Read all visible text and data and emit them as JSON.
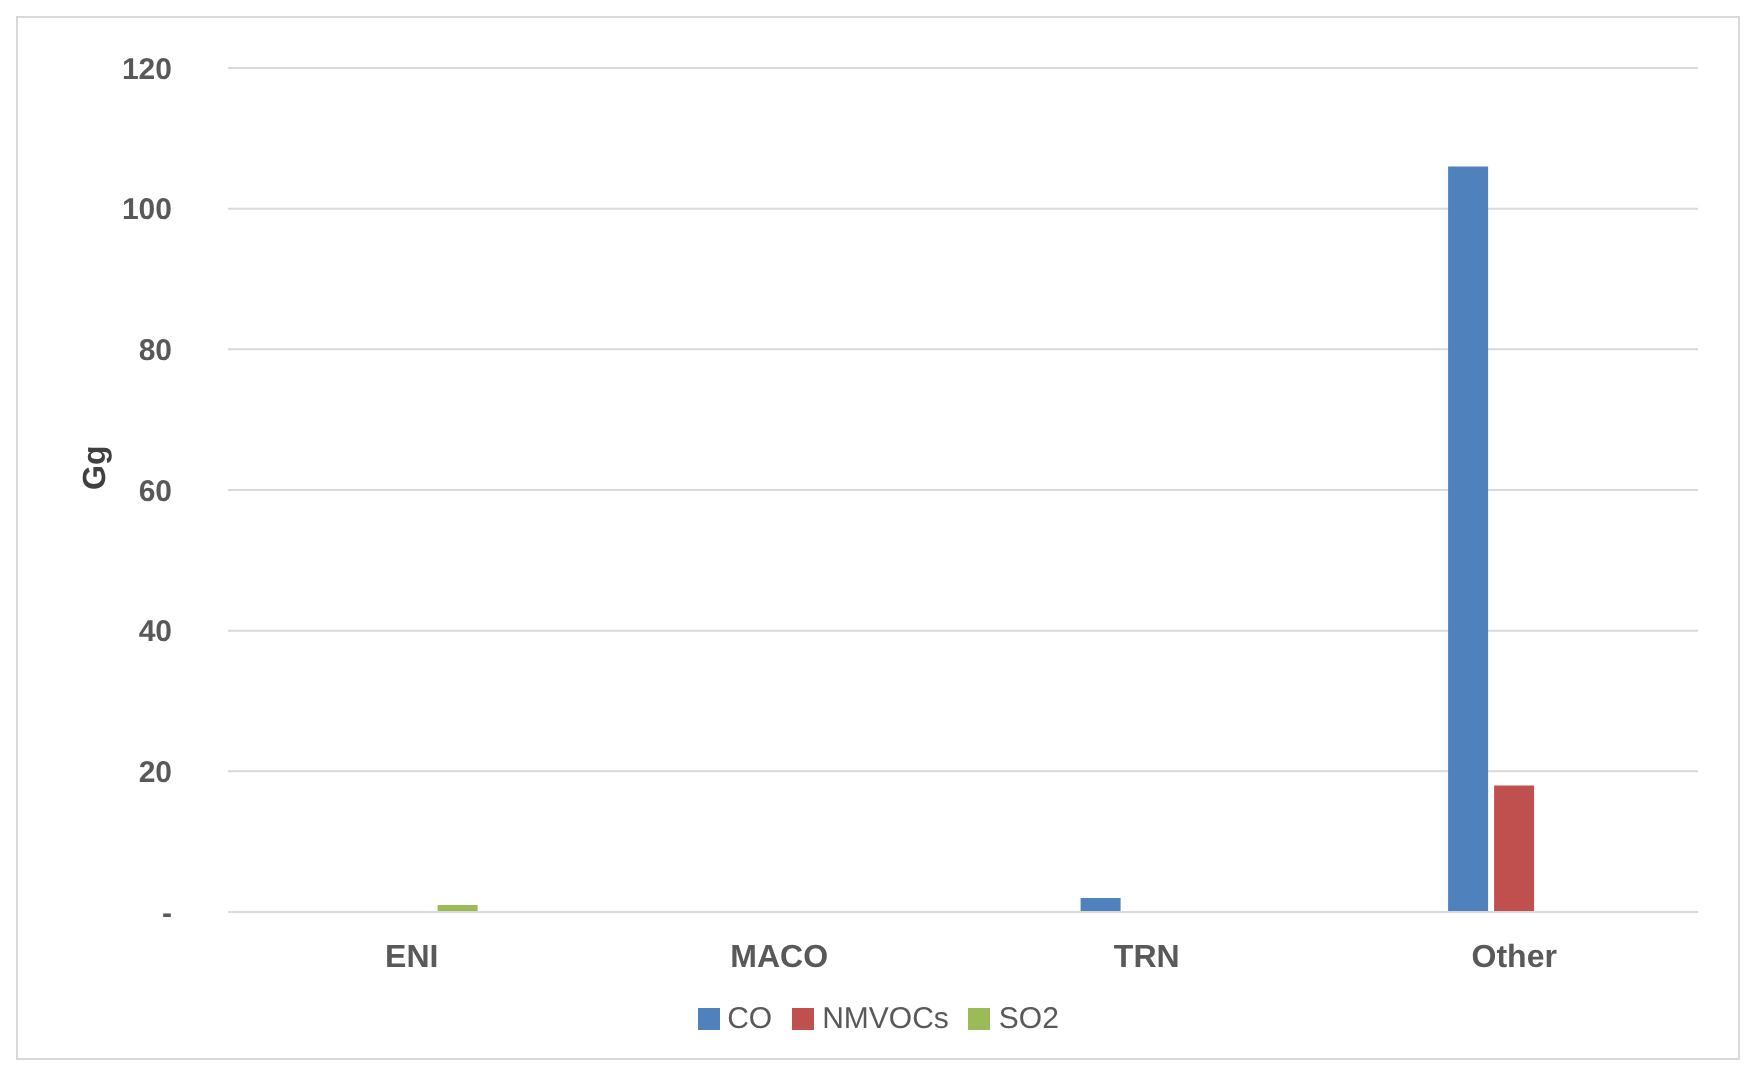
{
  "chart_data": {
    "type": "bar",
    "ylabel": "Gg",
    "categories": [
      "ENI",
      "MACO",
      "TRN",
      "Other"
    ],
    "series": [
      {
        "name": "CO",
        "color": "#4f81bd",
        "values": [
          0,
          0,
          2,
          106
        ]
      },
      {
        "name": "NMVOCs",
        "color": "#c0504d",
        "values": [
          0,
          0,
          0,
          18
        ]
      },
      {
        "name": "SO2",
        "color": "#9bbb59",
        "values": [
          1,
          0,
          0,
          0
        ]
      }
    ],
    "ylim": [
      0,
      120
    ],
    "yticks": [
      {
        "value": 0,
        "label": "-"
      },
      20,
      40,
      60,
      80,
      100,
      120
    ],
    "grid": "y",
    "legend": "bottom"
  }
}
